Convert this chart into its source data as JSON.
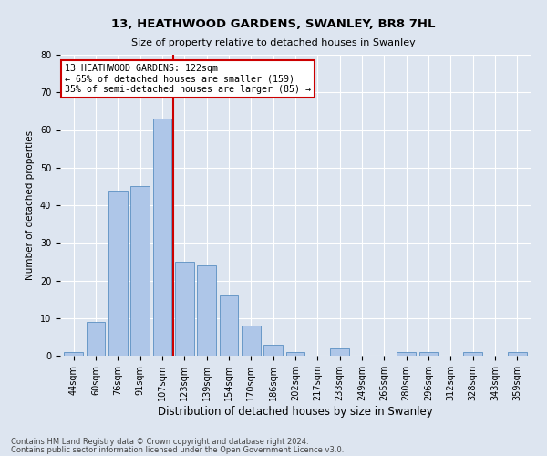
{
  "title_line1": "13, HEATHWOOD GARDENS, SWANLEY, BR8 7HL",
  "title_line2": "Size of property relative to detached houses in Swanley",
  "xlabel": "Distribution of detached houses by size in Swanley",
  "ylabel": "Number of detached properties",
  "categories": [
    "44sqm",
    "60sqm",
    "76sqm",
    "91sqm",
    "107sqm",
    "123sqm",
    "139sqm",
    "154sqm",
    "170sqm",
    "186sqm",
    "202sqm",
    "217sqm",
    "233sqm",
    "249sqm",
    "265sqm",
    "280sqm",
    "296sqm",
    "312sqm",
    "328sqm",
    "343sqm",
    "359sqm"
  ],
  "bar_heights": [
    1,
    9,
    44,
    45,
    63,
    25,
    24,
    16,
    8,
    3,
    1,
    0,
    2,
    0,
    0,
    1,
    1,
    0,
    1,
    0,
    1
  ],
  "bar_color": "#aec6e8",
  "bar_edge_color": "#5a8fc2",
  "vline_index": 4.5,
  "vline_color": "#cc0000",
  "ylim": [
    0,
    80
  ],
  "yticks": [
    0,
    10,
    20,
    30,
    40,
    50,
    60,
    70,
    80
  ],
  "annotation_text": "13 HEATHWOOD GARDENS: 122sqm\n← 65% of detached houses are smaller (159)\n35% of semi-detached houses are larger (85) →",
  "annotation_box_color": "#cc0000",
  "footer_line1": "Contains HM Land Registry data © Crown copyright and database right 2024.",
  "footer_line2": "Contains public sector information licensed under the Open Government Licence v3.0.",
  "bg_color": "#dde5f0",
  "plot_bg_color": "#dde5f0",
  "grid_color": "#ffffff",
  "title1_fontsize": 9.5,
  "title2_fontsize": 8.0,
  "ylabel_fontsize": 7.5,
  "xlabel_fontsize": 8.5,
  "tick_fontsize": 7.0,
  "annot_fontsize": 7.2,
  "footer_fontsize": 6.0
}
